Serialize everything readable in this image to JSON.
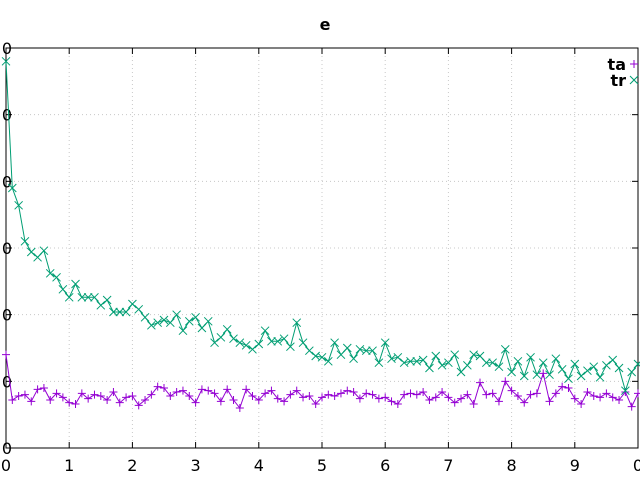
{
  "chart_data": {
    "type": "line",
    "title": "e",
    "xlabel": "",
    "ylabel": "",
    "xlim": [
      0,
      10
    ],
    "ylim": [
      0,
      30
    ],
    "grid": true,
    "legend_position": "top-right",
    "x_ticks": [
      0,
      1,
      2,
      3,
      4,
      5,
      6,
      7,
      8,
      9,
      10
    ],
    "x_tick_labels": [
      "0",
      "1",
      "2",
      "3",
      "4",
      "5",
      "6",
      "7",
      "8",
      "9",
      "0"
    ],
    "y_ticks": [
      0,
      5,
      10,
      15,
      20,
      25,
      30
    ],
    "y_tick_labels": [
      "0",
      "0",
      "0",
      "0",
      "0",
      "0",
      "0"
    ],
    "series": [
      {
        "name": "ta",
        "color": "#9400d3",
        "marker": "plus",
        "x": [
          0.0,
          0.1,
          0.2,
          0.3,
          0.4,
          0.5,
          0.6,
          0.7,
          0.8,
          0.9,
          1.0,
          1.1,
          1.2,
          1.3,
          1.4,
          1.5,
          1.6,
          1.7,
          1.8,
          1.9,
          2.0,
          2.1,
          2.2,
          2.3,
          2.4,
          2.5,
          2.6,
          2.7,
          2.8,
          2.9,
          3.0,
          3.1,
          3.2,
          3.3,
          3.4,
          3.5,
          3.6,
          3.7,
          3.8,
          3.9,
          4.0,
          4.1,
          4.2,
          4.3,
          4.4,
          4.5,
          4.6,
          4.7,
          4.8,
          4.9,
          5.0,
          5.1,
          5.2,
          5.3,
          5.4,
          5.5,
          5.6,
          5.7,
          5.8,
          5.9,
          6.0,
          6.1,
          6.2,
          6.3,
          6.4,
          6.5,
          6.6,
          6.7,
          6.8,
          6.9,
          7.0,
          7.1,
          7.2,
          7.3,
          7.4,
          7.5,
          7.6,
          7.7,
          7.8,
          7.9,
          8.0,
          8.1,
          8.2,
          8.3,
          8.4,
          8.5,
          8.6,
          8.7,
          8.8,
          8.9,
          9.0,
          9.1,
          9.2,
          9.3,
          9.4,
          9.5,
          9.6,
          9.7,
          9.8,
          9.9,
          10.0
        ],
        "y": [
          7.0,
          3.6,
          3.9,
          4.0,
          3.5,
          4.4,
          4.5,
          3.6,
          4.1,
          3.8,
          3.4,
          3.3,
          4.1,
          3.7,
          4.0,
          3.9,
          3.6,
          4.2,
          3.4,
          3.8,
          3.9,
          3.2,
          3.6,
          4.0,
          4.6,
          4.5,
          3.9,
          4.2,
          4.3,
          3.9,
          3.4,
          4.4,
          4.3,
          4.1,
          3.5,
          4.4,
          3.6,
          3.0,
          4.4,
          3.9,
          3.6,
          4.1,
          4.3,
          3.7,
          3.5,
          4.0,
          4.3,
          3.8,
          3.9,
          3.3,
          3.8,
          4.0,
          3.9,
          4.1,
          4.3,
          4.2,
          3.7,
          4.1,
          4.0,
          3.7,
          3.8,
          3.5,
          3.3,
          4.0,
          4.1,
          4.0,
          4.2,
          3.6,
          3.8,
          4.2,
          3.8,
          3.4,
          3.7,
          4.0,
          3.3,
          4.9,
          4.0,
          4.1,
          3.5,
          5.0,
          4.3,
          3.9,
          3.4,
          4.0,
          4.1,
          5.6,
          3.5,
          4.1,
          4.6,
          4.5,
          3.7,
          3.3,
          4.2,
          3.9,
          3.8,
          4.1,
          3.8,
          3.6,
          4.2,
          3.1,
          4.1
        ]
      },
      {
        "name": "tr",
        "color": "#009e73",
        "marker": "cross",
        "x": [
          0.0,
          0.1,
          0.2,
          0.3,
          0.4,
          0.5,
          0.6,
          0.7,
          0.8,
          0.9,
          1.0,
          1.1,
          1.2,
          1.3,
          1.4,
          1.5,
          1.6,
          1.7,
          1.8,
          1.9,
          2.0,
          2.1,
          2.2,
          2.3,
          2.4,
          2.5,
          2.6,
          2.7,
          2.8,
          2.9,
          3.0,
          3.1,
          3.2,
          3.3,
          3.4,
          3.5,
          3.6,
          3.7,
          3.8,
          3.9,
          4.0,
          4.1,
          4.2,
          4.3,
          4.4,
          4.5,
          4.6,
          4.7,
          4.8,
          4.9,
          5.0,
          5.1,
          5.2,
          5.3,
          5.4,
          5.5,
          5.6,
          5.7,
          5.8,
          5.9,
          6.0,
          6.1,
          6.2,
          6.3,
          6.4,
          6.5,
          6.6,
          6.7,
          6.8,
          6.9,
          7.0,
          7.1,
          7.2,
          7.3,
          7.4,
          7.5,
          7.6,
          7.7,
          7.8,
          7.9,
          8.0,
          8.1,
          8.2,
          8.3,
          8.4,
          8.5,
          8.6,
          8.7,
          8.8,
          8.9,
          9.0,
          9.1,
          9.2,
          9.3,
          9.4,
          9.5,
          9.6,
          9.7,
          9.8,
          9.9,
          10.0
        ],
        "y": [
          29.0,
          19.5,
          18.2,
          15.5,
          14.7,
          14.3,
          14.8,
          13.1,
          12.8,
          11.9,
          11.3,
          12.3,
          11.3,
          11.3,
          11.3,
          10.7,
          11.1,
          10.2,
          10.2,
          10.2,
          10.8,
          10.4,
          9.8,
          9.2,
          9.4,
          9.6,
          9.4,
          10.0,
          8.8,
          9.5,
          9.8,
          9.0,
          9.5,
          7.9,
          8.3,
          8.9,
          8.2,
          7.9,
          7.7,
          7.4,
          7.8,
          8.8,
          8.0,
          8.0,
          8.2,
          7.6,
          9.4,
          7.9,
          7.3,
          6.9,
          6.8,
          6.5,
          7.9,
          7.0,
          7.5,
          6.7,
          7.4,
          7.3,
          7.3,
          6.4,
          7.9,
          6.7,
          6.8,
          6.4,
          6.5,
          6.5,
          6.6,
          6.0,
          6.9,
          6.2,
          6.4,
          7.0,
          5.7,
          6.2,
          7.0,
          6.9,
          6.4,
          6.4,
          6.1,
          7.4,
          5.7,
          6.5,
          5.4,
          6.8,
          5.5,
          6.4,
          5.5,
          6.7,
          5.9,
          5.2,
          6.3,
          5.4,
          5.8,
          6.1,
          5.3,
          6.2,
          6.6,
          6.0,
          4.3,
          5.7,
          6.3
        ]
      }
    ]
  }
}
